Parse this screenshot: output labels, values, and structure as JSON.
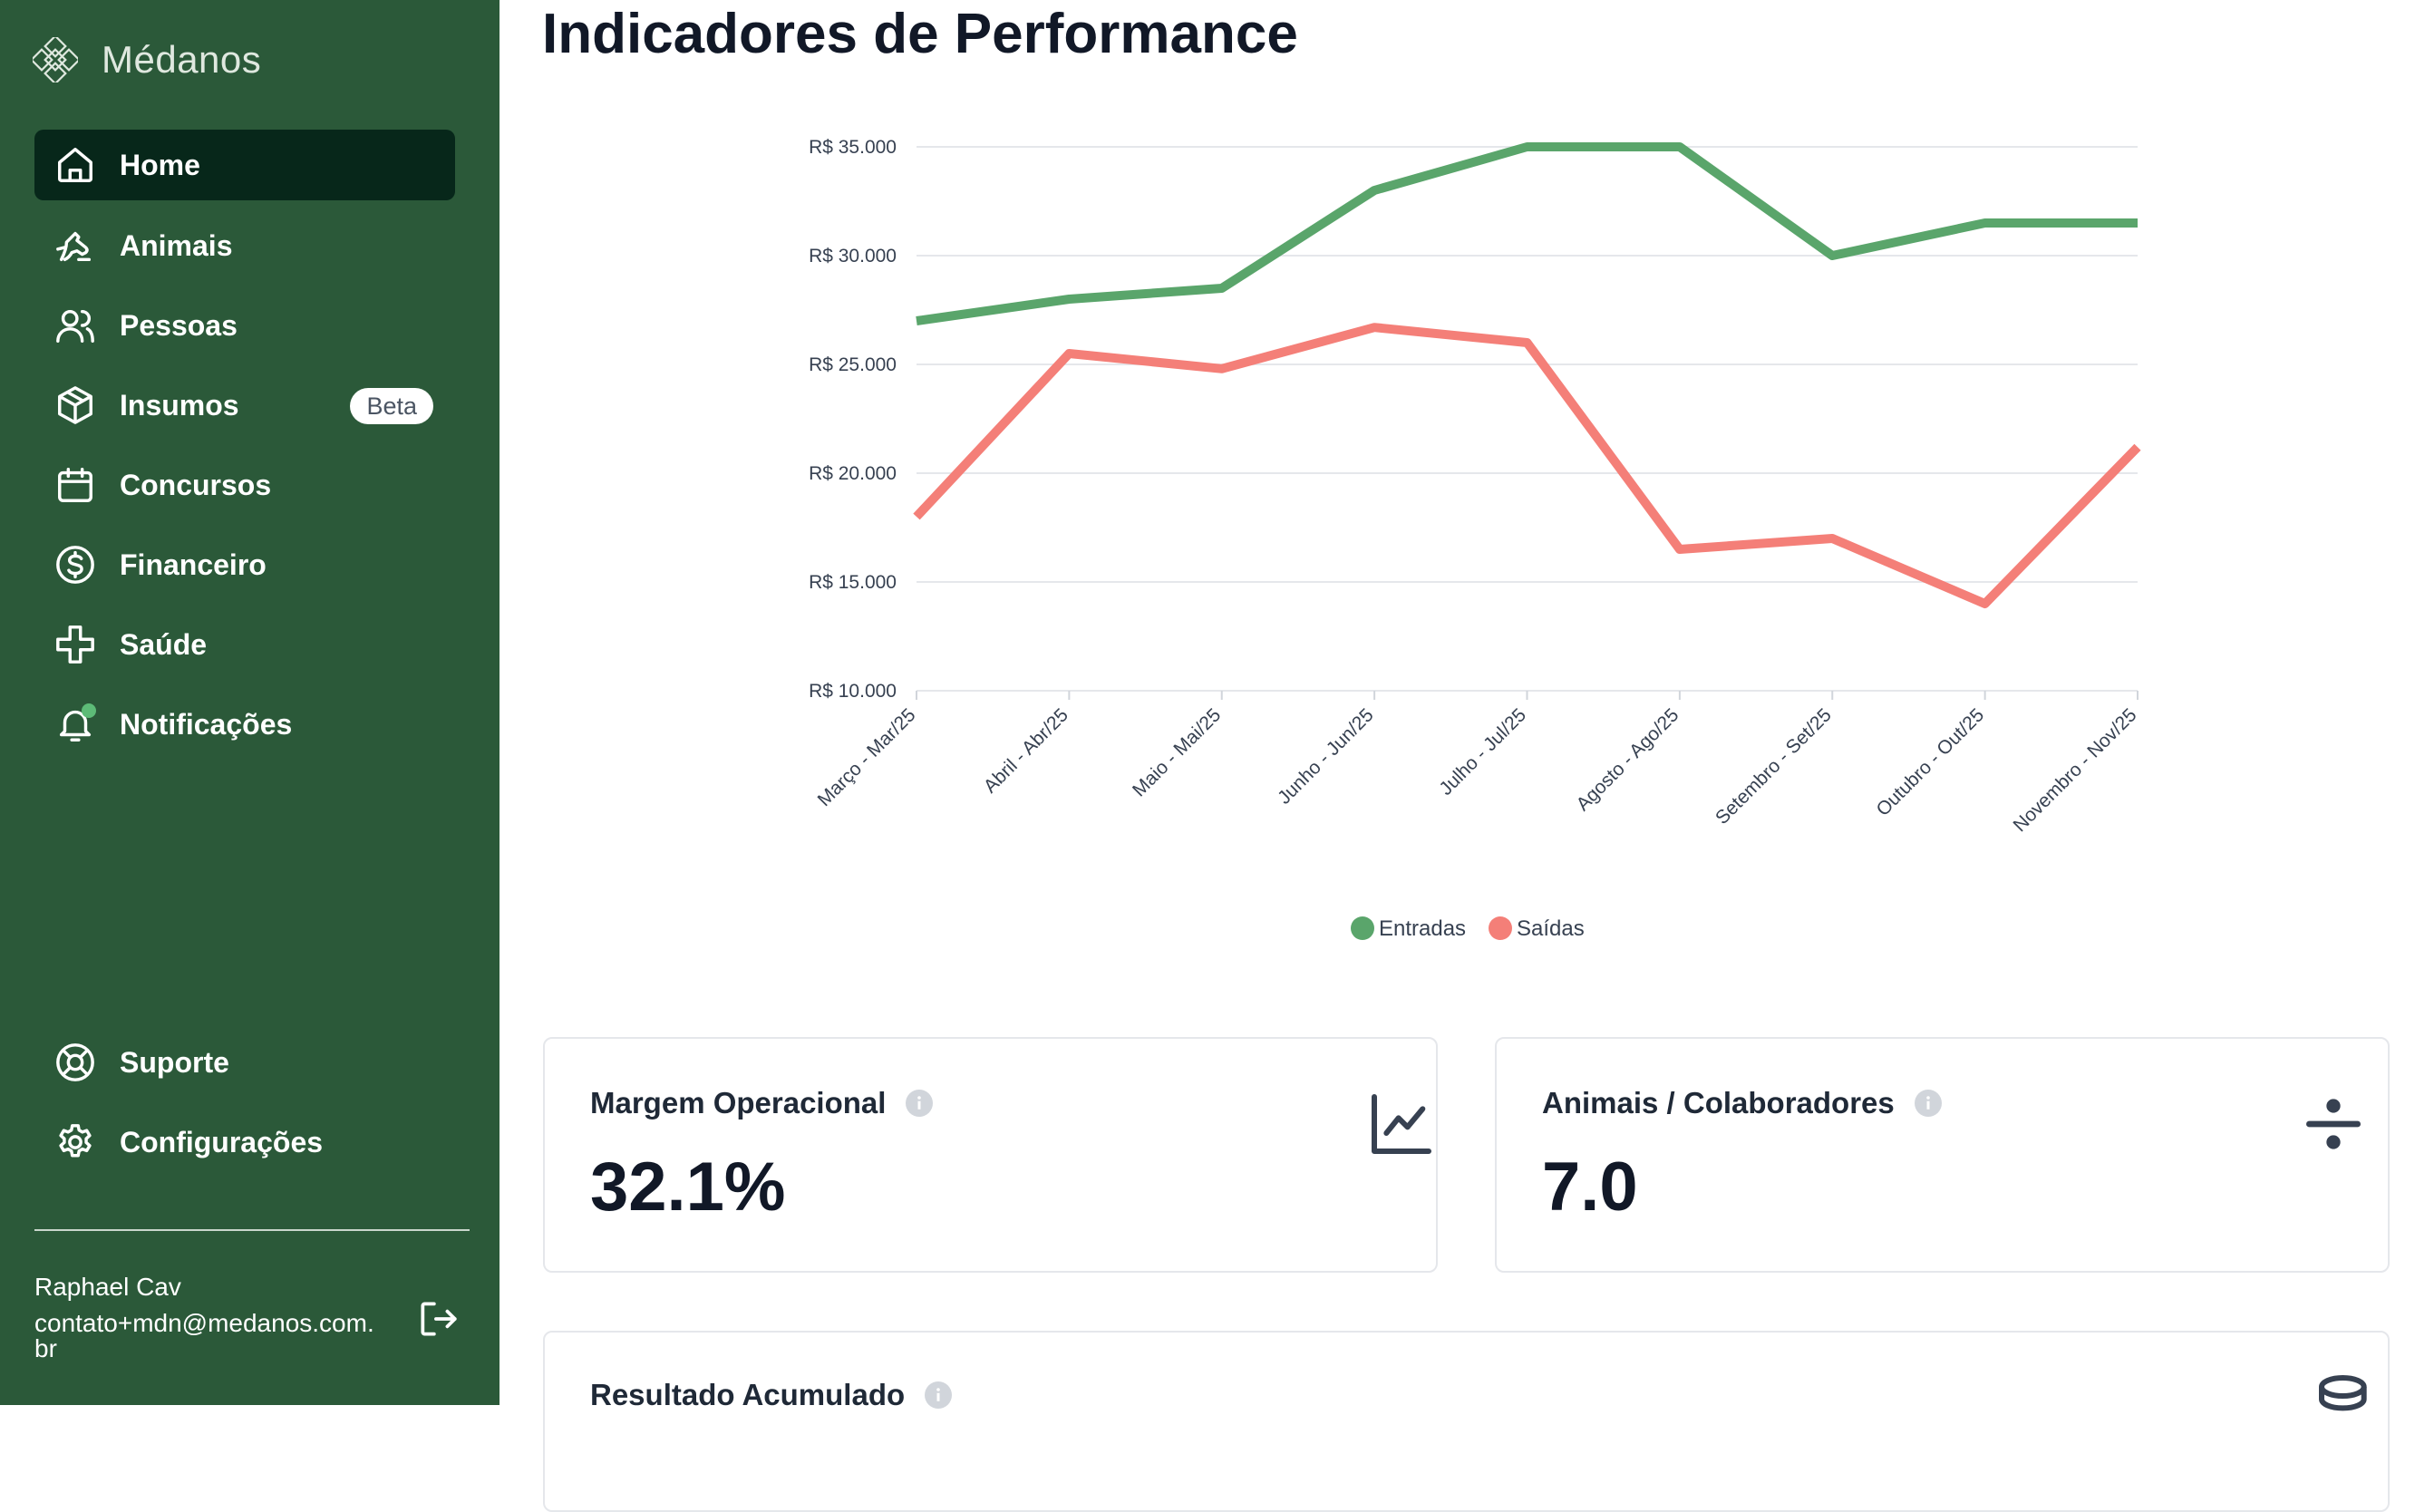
{
  "brand": {
    "name": "Médanos",
    "logo_icon": "flower-logo-icon"
  },
  "sidebar": {
    "items": [
      {
        "label": "Home",
        "icon": "home-icon",
        "active": true
      },
      {
        "label": "Animais",
        "icon": "horse-icon"
      },
      {
        "label": "Pessoas",
        "icon": "users-icon"
      },
      {
        "label": "Insumos",
        "icon": "package-icon",
        "badge": "Beta"
      },
      {
        "label": "Concursos",
        "icon": "calendar-icon"
      },
      {
        "label": "Financeiro",
        "icon": "dollar-circle-icon"
      },
      {
        "label": "Saúde",
        "icon": "health-cross-icon"
      },
      {
        "label": "Notificações",
        "icon": "bell-icon"
      }
    ],
    "bottom_items": [
      {
        "label": "Suporte",
        "icon": "lifebuoy-icon"
      },
      {
        "label": "Configurações",
        "icon": "gear-icon"
      }
    ],
    "user": {
      "name": "Raphael Cav",
      "email": "contato+mdn@medanos.com.br"
    }
  },
  "page": {
    "title": "Indicadores de Performance"
  },
  "chart_data": {
    "type": "line",
    "title": "",
    "categories": [
      "Março - Mar/25",
      "Abril - Abr/25",
      "Maio - Mai/25",
      "Junho - Jun/25",
      "Julho - Jul/25",
      "Agosto - Ago/25",
      "Setembro - Set/25",
      "Outubro - Out/25",
      "Novembro - Nov/25"
    ],
    "series": [
      {
        "name": "Entradas",
        "color": "#5aa56b",
        "values": [
          27000,
          28000,
          28500,
          33000,
          35000,
          35000,
          30000,
          31500,
          31500
        ]
      },
      {
        "name": "Saídas",
        "color": "#f47f78",
        "values": [
          18000,
          25500,
          24800,
          26700,
          26000,
          16500,
          17000,
          14000,
          21200
        ]
      }
    ],
    "y_ticks": [
      "R$ 35.000",
      "R$ 30.000",
      "R$ 25.000",
      "R$ 20.000",
      "R$ 15.000",
      "R$ 10.000"
    ],
    "y_tick_values": [
      35000,
      30000,
      25000,
      20000,
      15000,
      10000
    ],
    "ylim": [
      10000,
      35000
    ],
    "grid": true,
    "legend_position": "bottom-center"
  },
  "cards": [
    {
      "title": "Margem Operacional",
      "value": "32.1%",
      "icon": "line-chart-icon"
    },
    {
      "title": "Animais / Colaboradores",
      "value": "7.0",
      "icon": "divide-icon"
    },
    {
      "title": "Resultado Acumulado",
      "value": "",
      "icon": "coins-icon"
    }
  ]
}
